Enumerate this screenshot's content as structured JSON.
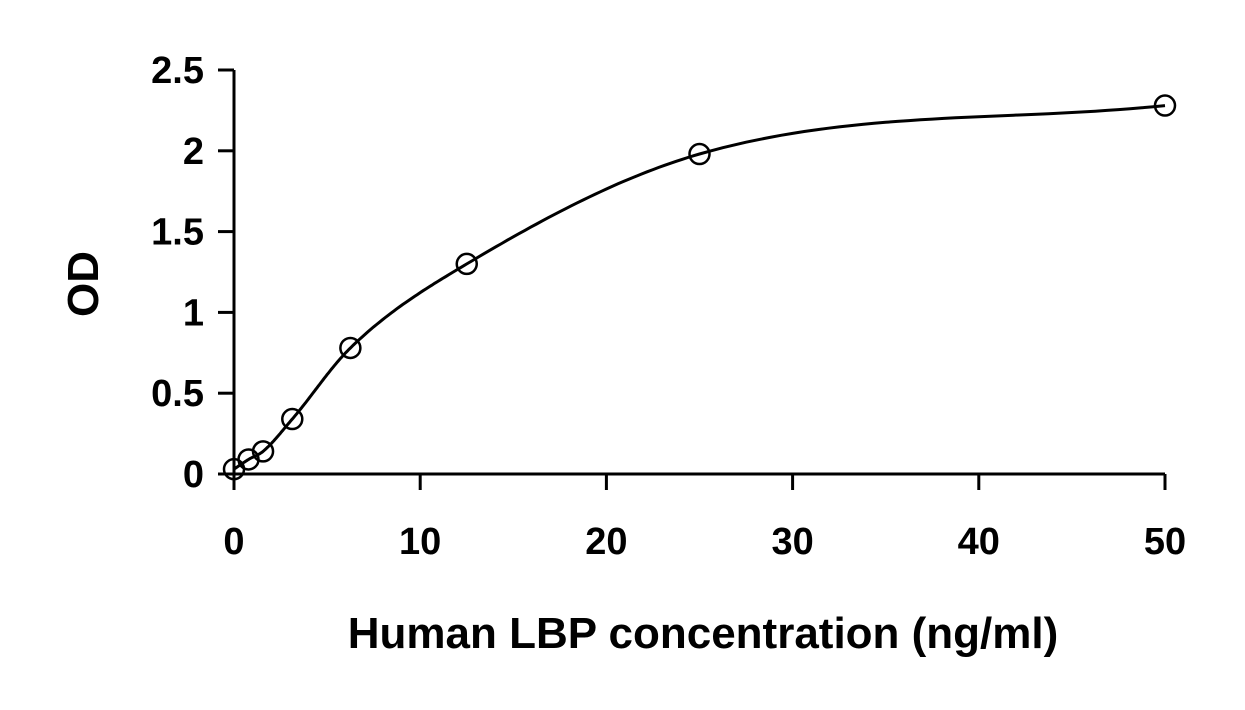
{
  "chart_data": {
    "type": "scatter",
    "title": "",
    "xlabel": "Human LBP concentration (ng/ml)",
    "ylabel": "OD",
    "xlim": [
      0,
      50
    ],
    "ylim": [
      0,
      2.5
    ],
    "xticks": [
      0,
      10,
      20,
      30,
      40,
      50
    ],
    "yticks": [
      0,
      0.5,
      1,
      1.5,
      2,
      2.5
    ],
    "xtick_labels": [
      "0",
      "10",
      "20",
      "30",
      "40",
      "50"
    ],
    "ytick_labels": [
      "0",
      "0.5",
      "1",
      "1.5",
      "2",
      "2.5"
    ],
    "grid": false,
    "legend": "none",
    "series": [
      {
        "marker": "open-circle",
        "fit": "smooth-curve",
        "x": [
          0,
          0.78,
          1.56,
          3.13,
          6.25,
          12.5,
          25,
          50
        ],
        "y": [
          0.03,
          0.09,
          0.14,
          0.34,
          0.78,
          1.3,
          1.98,
          2.28
        ]
      }
    ]
  }
}
